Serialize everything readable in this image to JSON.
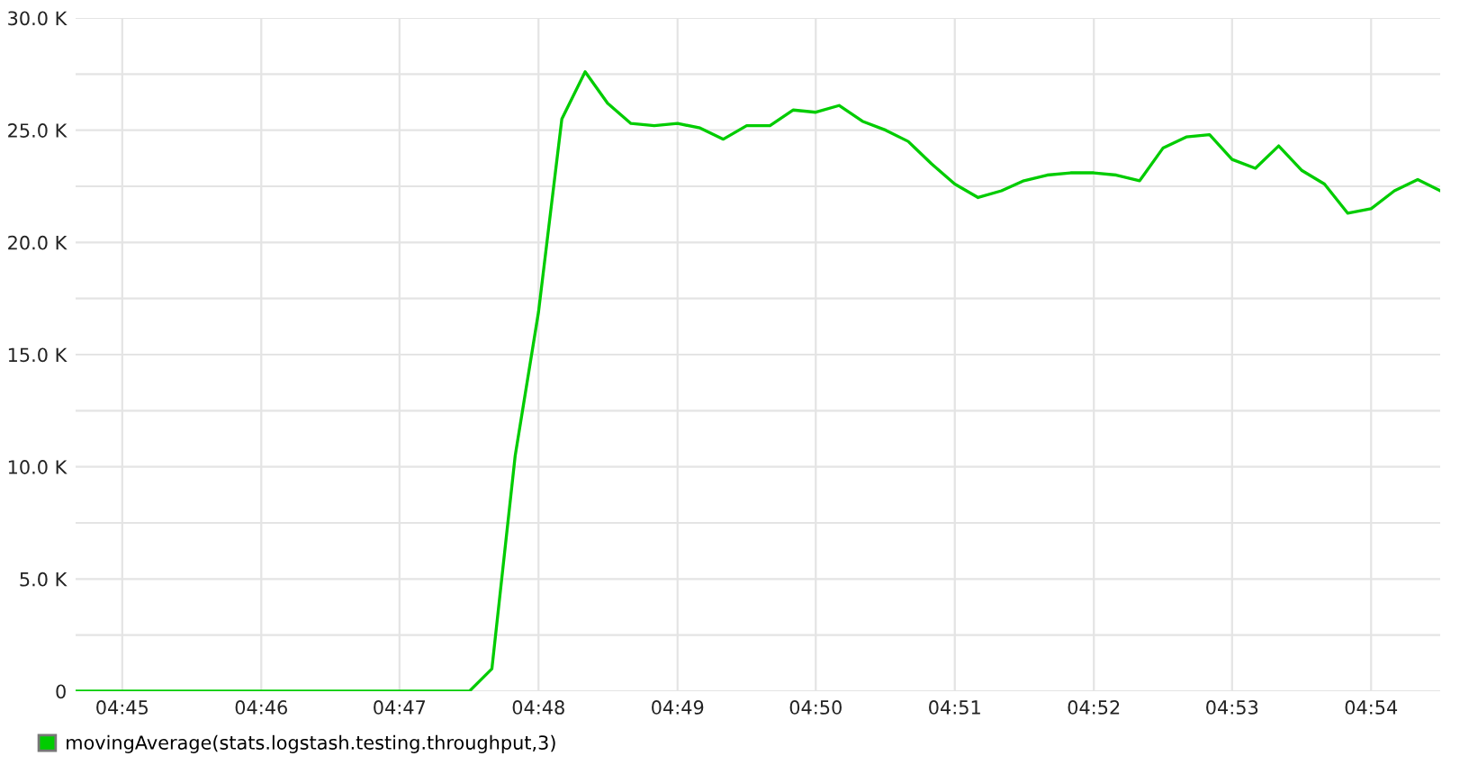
{
  "chart_data": {
    "type": "line",
    "x": [
      4.7444,
      4.7472,
      4.75,
      4.7528,
      4.7556,
      4.7583,
      4.7611,
      4.7639,
      4.7667,
      4.7694,
      4.7722,
      4.775,
      4.7778,
      4.7806,
      4.7833,
      4.7861,
      4.7889,
      4.7917,
      4.7944,
      4.7972,
      4.8,
      4.8028,
      4.8056,
      4.8083,
      4.8111,
      4.8139,
      4.8167,
      4.8194,
      4.8222,
      4.825,
      4.8278,
      4.8306,
      4.8333,
      4.8361,
      4.8389,
      4.8417,
      4.8444,
      4.8472,
      4.85,
      4.8528,
      4.8556,
      4.8583,
      4.8611,
      4.8639,
      4.8667,
      4.8694,
      4.8722,
      4.875,
      4.8778,
      4.8806,
      4.8833,
      4.8861,
      4.8889,
      4.8917,
      4.8944,
      4.8972,
      4.9,
      4.9028,
      4.9056,
      4.9083
    ],
    "series": [
      {
        "name": "movingAverage(stats.logstash.testing.throughput,3)",
        "color": "#00cc00",
        "values": [
          0,
          0,
          0,
          0,
          0,
          0,
          0,
          0,
          0,
          0,
          0,
          0,
          0,
          0,
          0,
          0,
          0,
          0,
          1000,
          10500,
          16900,
          25500,
          27600,
          26200,
          25300,
          25200,
          25300,
          25100,
          24600,
          25200,
          25200,
          25900,
          25800,
          26100,
          25400,
          25000,
          24500,
          23500,
          22600,
          22000,
          22300,
          22750,
          23000,
          23100,
          23100,
          23000,
          22750,
          24200,
          24700,
          24800,
          23700,
          23300,
          24300,
          23200,
          22600,
          21300,
          21500,
          22300,
          22800,
          22300
        ]
      }
    ],
    "xlim": [
      4.7444,
      4.9083
    ],
    "xticks": [
      {
        "value": 4.75,
        "label": "04:45"
      },
      {
        "value": 4.7667,
        "label": "04:46"
      },
      {
        "value": 4.7833,
        "label": "04:47"
      },
      {
        "value": 4.8,
        "label": "04:48"
      },
      {
        "value": 4.8167,
        "label": "04:49"
      },
      {
        "value": 4.8333,
        "label": "04:50"
      },
      {
        "value": 4.85,
        "label": "04:51"
      },
      {
        "value": 4.8667,
        "label": "04:52"
      },
      {
        "value": 4.8833,
        "label": "04:53"
      },
      {
        "value": 4.9,
        "label": "04:54"
      }
    ],
    "ylim": [
      0,
      30000
    ],
    "yticks": [
      {
        "value": 0,
        "label": "0"
      },
      {
        "value": 2500,
        "label": null
      },
      {
        "value": 5000,
        "label": "5.0 K"
      },
      {
        "value": 7500,
        "label": null
      },
      {
        "value": 10000,
        "label": "10.0 K"
      },
      {
        "value": 12500,
        "label": null
      },
      {
        "value": 15000,
        "label": "15.0 K"
      },
      {
        "value": 17500,
        "label": null
      },
      {
        "value": 20000,
        "label": "20.0 K"
      },
      {
        "value": 22500,
        "label": null
      },
      {
        "value": 25000,
        "label": "25.0 K"
      },
      {
        "value": 27500,
        "label": null
      },
      {
        "value": 30000,
        "label": "30.0 K"
      }
    ],
    "grid": true,
    "legend": "bottom left"
  }
}
